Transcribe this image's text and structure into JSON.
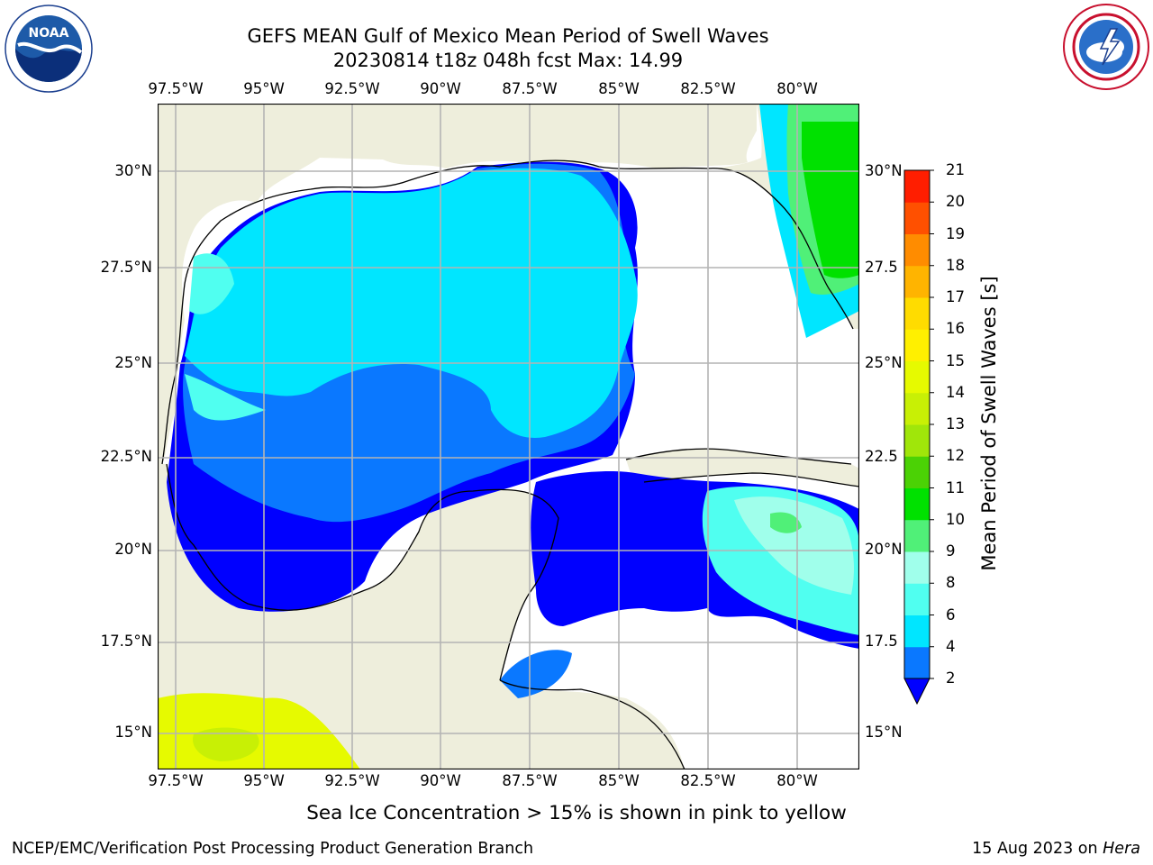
{
  "header": {
    "title_line1": "GEFS MEAN Gulf of Mexico Mean Period of Swell Waves",
    "title_line2": "20230814 t18z 048h fcst   Max: 14.99"
  },
  "logos": {
    "noaa": {
      "text": "NOAA",
      "ring_text": "NATIONAL OCEANIC AND ATMOSPHERIC ADMINISTRATION · U.S. DEPARTMENT OF COMMERCE"
    },
    "nws": {
      "ring_text": "NATIONAL WEATHER SERVICE"
    }
  },
  "map": {
    "lon_labels": [
      "97.5°W",
      "95°W",
      "92.5°W",
      "90°W",
      "87.5°W",
      "85°W",
      "82.5°W",
      "80°W"
    ],
    "lat_labels_left": [
      "30°N",
      "27.5°N",
      "25°N",
      "22.5°N",
      "20°N",
      "17.5°N",
      "15°N"
    ],
    "lat_labels_right": [
      "30°N",
      "27.5",
      "25°N",
      "22.5",
      "20°N",
      "17.5",
      "15°N"
    ],
    "colors": {
      "land": "#EEEEDC",
      "coast": "#000000",
      "grid": "#B4B4B4"
    }
  },
  "colorbar": {
    "label": "Mean Period of Swell Waves [s]",
    "ticks": [
      "2",
      "4",
      "6",
      "8",
      "9",
      "10",
      "11",
      "12",
      "13",
      "14",
      "15",
      "16",
      "17",
      "18",
      "19",
      "20",
      "21"
    ],
    "colors": [
      "#0A78FF",
      "#00E6FF",
      "#50FFF0",
      "#A0FFEB",
      "#50F078",
      "#00E100",
      "#4BD205",
      "#A0E60A",
      "#C8F005",
      "#E6FA00",
      "#FFF000",
      "#FFDC00",
      "#FFB400",
      "#FF8C00",
      "#FF5000",
      "#FF1E00"
    ],
    "under_color": "#0000FF"
  },
  "caption": "Sea Ice Concentration > 15% is shown in pink to yellow",
  "footer": {
    "left": "NCEP/EMC/Verification Post Processing Product Generation Branch",
    "date": "15 Aug 2023 on ",
    "machine": "Hera"
  }
}
